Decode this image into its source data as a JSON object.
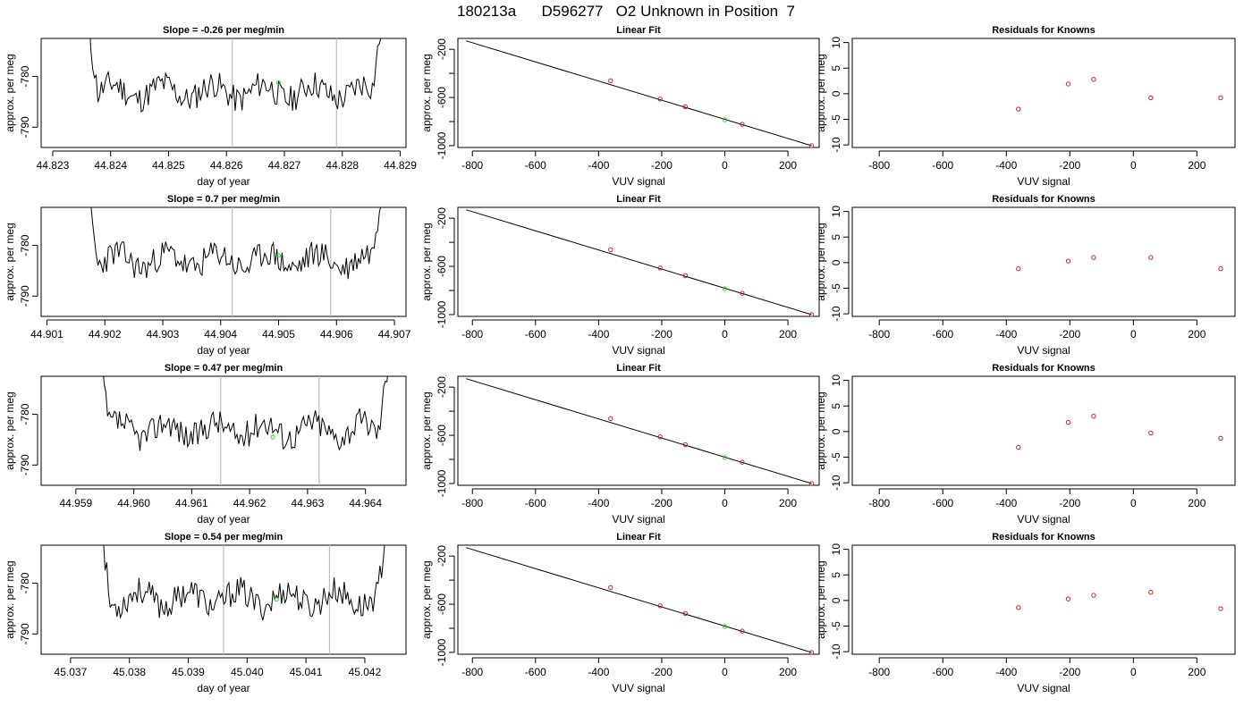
{
  "page_title": "180213a      D596277   O2 Unknown in Position  7",
  "chart_data": [
    {
      "type": "line",
      "title": "Slope =  -0.26  per meg/min",
      "xlabel": "day of year",
      "ylabel": "approx. per meg",
      "xlim": [
        44.8228,
        44.8291
      ],
      "ylim": [
        -794,
        -772.5
      ],
      "x_ticks": [
        44.823,
        44.824,
        44.825,
        44.826,
        44.827,
        44.828,
        44.829
      ],
      "x_tick_labels": [
        "44.823",
        "44.824",
        "44.825",
        "44.826",
        "44.827",
        "44.828",
        "44.829"
      ],
      "y_ticks": [
        -780,
        -790
      ],
      "y_tick_labels": [
        "-780",
        "-790"
      ],
      "x_start": 44.8236,
      "x_end": 44.8287,
      "vlines": [
        44.8261,
        44.8279
      ],
      "marker": {
        "x": 44.8269,
        "y": -781.2
      },
      "seed": 11
    },
    {
      "type": "line",
      "title": "Slope =  0.7  per meg/min",
      "xlabel": "day of year",
      "ylabel": "approx. per meg",
      "xlim": [
        44.9009,
        44.9072
      ],
      "ylim": [
        -794,
        -772.5
      ],
      "x_ticks": [
        44.901,
        44.902,
        44.903,
        44.904,
        44.905,
        44.906,
        44.907
      ],
      "x_tick_labels": [
        "44.901",
        "44.902",
        "44.903",
        "44.904",
        "44.905",
        "44.906",
        "44.907"
      ],
      "y_ticks": [
        -780,
        -790
      ],
      "y_tick_labels": [
        "-780",
        "-790"
      ],
      "x_start": 44.9017,
      "x_end": 44.9068,
      "vlines": [
        44.9042,
        44.9059
      ],
      "marker": {
        "x": 44.905,
        "y": -782.0
      },
      "seed": 23
    },
    {
      "type": "line",
      "title": "Slope =  0.47  per meg/min",
      "xlabel": "day of year",
      "ylabel": "approx. per meg",
      "xlim": [
        44.9584,
        44.9647
      ],
      "ylim": [
        -794,
        -772.5
      ],
      "x_ticks": [
        44.959,
        44.96,
        44.961,
        44.962,
        44.963,
        44.964
      ],
      "x_tick_labels": [
        "44.959",
        "44.960",
        "44.961",
        "44.962",
        "44.963",
        "44.964"
      ],
      "y_ticks": [
        -780,
        -790
      ],
      "y_tick_labels": [
        "-780",
        "-790"
      ],
      "x_start": 44.9594,
      "x_end": 44.9644,
      "vlines": [
        44.9615,
        44.9632
      ],
      "marker": {
        "x": 44.9624,
        "y": -784.5
      },
      "seed": 37
    },
    {
      "type": "line",
      "title": "Slope =  0.54  per meg/min",
      "xlabel": "day of year",
      "ylabel": "approx. per meg",
      "xlim": [
        45.0365,
        45.0427
      ],
      "ylim": [
        -794,
        -772.5
      ],
      "x_ticks": [
        45.037,
        45.038,
        45.039,
        45.04,
        45.041,
        45.042
      ],
      "x_tick_labels": [
        "45.037",
        "45.038",
        "45.039",
        "45.040",
        "45.041",
        "45.042"
      ],
      "y_ticks": [
        -780,
        -790
      ],
      "y_tick_labels": [
        "-780",
        "-790"
      ],
      "x_start": 45.0375,
      "x_end": 45.0424,
      "vlines": [
        45.0396,
        45.0414
      ],
      "marker": {
        "x": 45.0405,
        "y": -783.2
      },
      "seed": 53
    },
    {
      "type": "scatter",
      "title": "Linear Fit",
      "xlabel": "VUV signal",
      "ylabel": "approx. per meg",
      "xlim": [
        -846,
        299
      ],
      "ylim": [
        -1015,
        -110
      ],
      "x_ticks": [
        -800,
        -600,
        -400,
        -200,
        0,
        200
      ],
      "x_tick_labels": [
        "-800",
        "-600",
        "-400",
        "-200",
        "0",
        "200"
      ],
      "y_ticks": [
        -200,
        -400,
        -600,
        -800,
        -1000
      ],
      "y_tick_labels": [
        "-200",
        "",
        "-600",
        "",
        "-1000"
      ],
      "fit_line": {
        "x": [
          -820,
          275
        ],
        "y": [
          -130,
          -1000
        ]
      },
      "knowns": {
        "x": [
          -362,
          -205,
          -125,
          55,
          275
        ],
        "y": [
          -461,
          -613,
          -677,
          -823,
          -1000
        ]
      },
      "unknown": {
        "x": 0,
        "y": -785
      }
    },
    {
      "type": "scatter",
      "title": "Linear Fit",
      "xlabel": "VUV signal",
      "ylabel": "approx. per meg",
      "xlim": [
        -846,
        299
      ],
      "ylim": [
        -1015,
        -110
      ],
      "x_ticks": [
        -800,
        -600,
        -400,
        -200,
        0,
        200
      ],
      "x_tick_labels": [
        "-800",
        "-600",
        "-400",
        "-200",
        "0",
        "200"
      ],
      "y_ticks": [
        -200,
        -400,
        -600,
        -800,
        -1000
      ],
      "y_tick_labels": [
        "-200",
        "",
        "-600",
        "",
        "-1000"
      ],
      "fit_line": {
        "x": [
          -820,
          275
        ],
        "y": [
          -130,
          -1000
        ]
      },
      "knowns": {
        "x": [
          -362,
          -205,
          -125,
          55,
          275
        ],
        "y": [
          -461,
          -613,
          -677,
          -823,
          -1000
        ]
      },
      "unknown": {
        "x": 0,
        "y": -785
      }
    },
    {
      "type": "scatter",
      "title": "Linear Fit",
      "xlabel": "VUV signal",
      "ylabel": "approx. per meg",
      "xlim": [
        -846,
        299
      ],
      "ylim": [
        -1015,
        -110
      ],
      "x_ticks": [
        -800,
        -600,
        -400,
        -200,
        0,
        200
      ],
      "x_tick_labels": [
        "-800",
        "-600",
        "-400",
        "-200",
        "0",
        "200"
      ],
      "y_ticks": [
        -200,
        -400,
        -600,
        -800,
        -1000
      ],
      "y_tick_labels": [
        "-200",
        "",
        "-600",
        "",
        "-1000"
      ],
      "fit_line": {
        "x": [
          -820,
          275
        ],
        "y": [
          -130,
          -1000
        ]
      },
      "knowns": {
        "x": [
          -362,
          -205,
          -125,
          55,
          275
        ],
        "y": [
          -461,
          -613,
          -677,
          -823,
          -1000
        ]
      },
      "unknown": {
        "x": 0,
        "y": -785
      }
    },
    {
      "type": "scatter",
      "title": "Linear Fit",
      "xlabel": "VUV signal",
      "ylabel": "approx. per meg",
      "xlim": [
        -846,
        299
      ],
      "ylim": [
        -1015,
        -110
      ],
      "x_ticks": [
        -800,
        -600,
        -400,
        -200,
        0,
        200
      ],
      "x_tick_labels": [
        "-800",
        "-600",
        "-400",
        "-200",
        "0",
        "200"
      ],
      "y_ticks": [
        -200,
        -400,
        -600,
        -800,
        -1000
      ],
      "y_tick_labels": [
        "-200",
        "",
        "-600",
        "",
        "-1000"
      ],
      "fit_line": {
        "x": [
          -820,
          275
        ],
        "y": [
          -130,
          -1000
        ]
      },
      "knowns": {
        "x": [
          -362,
          -205,
          -125,
          55,
          275
        ],
        "y": [
          -461,
          -613,
          -677,
          -823,
          -1000
        ]
      },
      "unknown": {
        "x": 0,
        "y": -785
      }
    },
    {
      "type": "scatter",
      "title": "Residuals for Knowns",
      "xlabel": "VUV signal",
      "ylabel": "approx. per meg",
      "xlim": [
        -885,
        320
      ],
      "ylim": [
        -10.5,
        10.8
      ],
      "x_ticks": [
        -800,
        -600,
        -400,
        -200,
        0,
        200
      ],
      "x_tick_labels": [
        "-800",
        "-600",
        "-400",
        "-200",
        "0",
        "200"
      ],
      "y_ticks": [
        10,
        5,
        0,
        -5,
        -10
      ],
      "y_tick_labels": [
        "10",
        "5",
        "0",
        "-5",
        "-10"
      ],
      "knowns": {
        "x": [
          -362,
          -205,
          -125,
          55,
          275
        ],
        "y": [
          -3.0,
          1.9,
          2.8,
          -0.8,
          -0.8
        ]
      }
    },
    {
      "type": "scatter",
      "title": "Residuals for Knowns",
      "xlabel": "VUV signal",
      "ylabel": "approx. per meg",
      "xlim": [
        -885,
        320
      ],
      "ylim": [
        -10.5,
        10.8
      ],
      "x_ticks": [
        -800,
        -600,
        -400,
        -200,
        0,
        200
      ],
      "x_tick_labels": [
        "-800",
        "-600",
        "-400",
        "-200",
        "0",
        "200"
      ],
      "y_ticks": [
        10,
        5,
        0,
        -5,
        -10
      ],
      "y_tick_labels": [
        "10",
        "5",
        "0",
        "-5",
        "-10"
      ],
      "knowns": {
        "x": [
          -362,
          -205,
          -125,
          55,
          275
        ],
        "y": [
          -1.2,
          0.3,
          1.0,
          1.0,
          -1.2
        ]
      }
    },
    {
      "type": "scatter",
      "title": "Residuals for Knowns",
      "xlabel": "VUV signal",
      "ylabel": "approx. per meg",
      "xlim": [
        -885,
        320
      ],
      "ylim": [
        -10.5,
        10.8
      ],
      "x_ticks": [
        -800,
        -600,
        -400,
        -200,
        0,
        200
      ],
      "x_tick_labels": [
        "-800",
        "-600",
        "-400",
        "-200",
        "0",
        "200"
      ],
      "y_ticks": [
        10,
        5,
        0,
        -5,
        -10
      ],
      "y_tick_labels": [
        "10",
        "5",
        "0",
        "-5",
        "-10"
      ],
      "knowns": {
        "x": [
          -362,
          -205,
          -125,
          55,
          275
        ],
        "y": [
          -3.1,
          1.8,
          3.0,
          -0.3,
          -1.3
        ]
      }
    },
    {
      "type": "scatter",
      "title": "Residuals for Knowns",
      "xlabel": "VUV signal",
      "ylabel": "approx. per meg",
      "xlim": [
        -885,
        320
      ],
      "ylim": [
        -10.5,
        10.8
      ],
      "x_ticks": [
        -800,
        -600,
        -400,
        -200,
        0,
        200
      ],
      "x_tick_labels": [
        "-800",
        "-600",
        "-400",
        "-200",
        "0",
        "200"
      ],
      "y_ticks": [
        10,
        5,
        0,
        -5,
        -10
      ],
      "y_tick_labels": [
        "10",
        "5",
        "0",
        "-5",
        "-10"
      ],
      "knowns": {
        "x": [
          -362,
          -205,
          -125,
          55,
          275
        ],
        "y": [
          -1.4,
          0.3,
          1.0,
          1.6,
          -1.6
        ]
      }
    }
  ]
}
